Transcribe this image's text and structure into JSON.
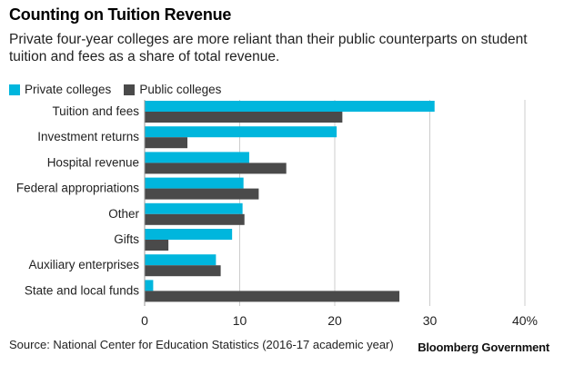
{
  "title": "Counting on Tuition Revenue",
  "subtitle": "Private four-year colleges are more reliant than their public counterparts on student tuition and fees as a share of total revenue.",
  "source": "Source: National Center for Education Statistics (2016-17 academic year)",
  "brand": "Bloomberg Government",
  "colors": {
    "private": "#00b6dd",
    "public": "#4a4a4a",
    "grid": "#cccccc"
  },
  "chart_data": {
    "type": "bar",
    "orientation": "horizontal",
    "title": "Counting on Tuition Revenue",
    "categories": [
      "Tuition and fees",
      "Investment returns",
      "Hospital revenue",
      "Federal appropriations",
      "Other",
      "Gifts",
      "Auxiliary enterprises",
      "State and local funds"
    ],
    "series": [
      {
        "name": "Private colleges",
        "values": [
          30.5,
          20.2,
          11.0,
          10.4,
          10.3,
          9.2,
          7.5,
          0.9
        ]
      },
      {
        "name": "Public colleges",
        "values": [
          20.8,
          4.5,
          14.9,
          12.0,
          10.5,
          2.5,
          8.0,
          26.8
        ]
      }
    ],
    "xlim": [
      0,
      40
    ],
    "ticks": [
      "0",
      "10",
      "20",
      "30",
      "40%"
    ],
    "tick_values": [
      0,
      10,
      20,
      30,
      40
    ],
    "legend_position": "top-left",
    "grid": true
  }
}
